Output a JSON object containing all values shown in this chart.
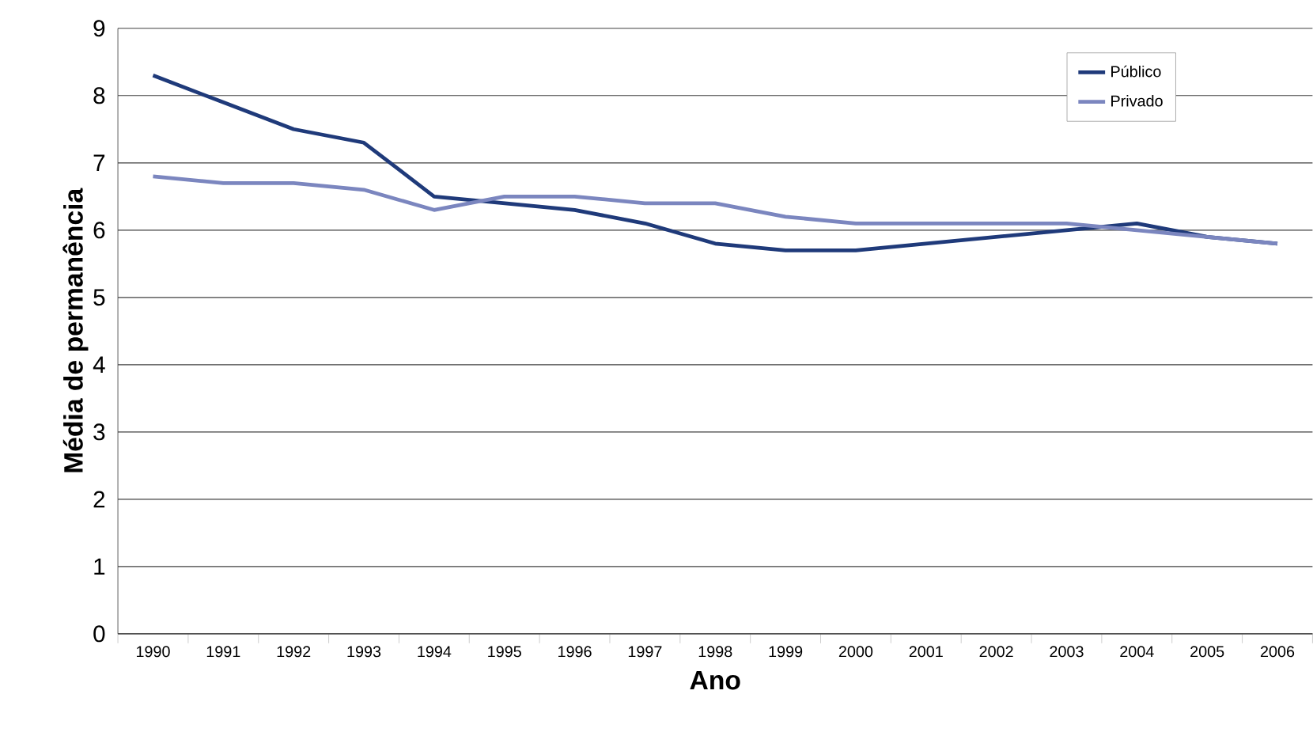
{
  "chart_data": {
    "type": "line",
    "xlabel": "Ano",
    "ylabel": "Média de permanência",
    "categories": [
      "1990",
      "1991",
      "1992",
      "1993",
      "1994",
      "1995",
      "1996",
      "1997",
      "1998",
      "1999",
      "2000",
      "2001",
      "2002",
      "2003",
      "2004",
      "2005",
      "2006"
    ],
    "series": [
      {
        "name": "Público",
        "color": "#1f3a7a",
        "values": [
          8.3,
          7.9,
          7.5,
          7.3,
          6.5,
          6.4,
          6.3,
          6.1,
          5.8,
          5.7,
          5.7,
          5.8,
          5.9,
          6.0,
          6.1,
          5.9,
          5.8
        ]
      },
      {
        "name": "Privado",
        "color": "#7b86bf",
        "values": [
          6.8,
          6.7,
          6.7,
          6.6,
          6.3,
          6.5,
          6.5,
          6.4,
          6.4,
          6.2,
          6.1,
          6.1,
          6.1,
          6.1,
          6.0,
          5.9,
          5.8
        ]
      }
    ],
    "ylim": [
      0,
      9
    ],
    "yticks": [
      0,
      1,
      2,
      3,
      4,
      5,
      6,
      7,
      8,
      9
    ],
    "grid": "y",
    "legend": "top right",
    "marker": "none",
    "line_style": "solid"
  }
}
